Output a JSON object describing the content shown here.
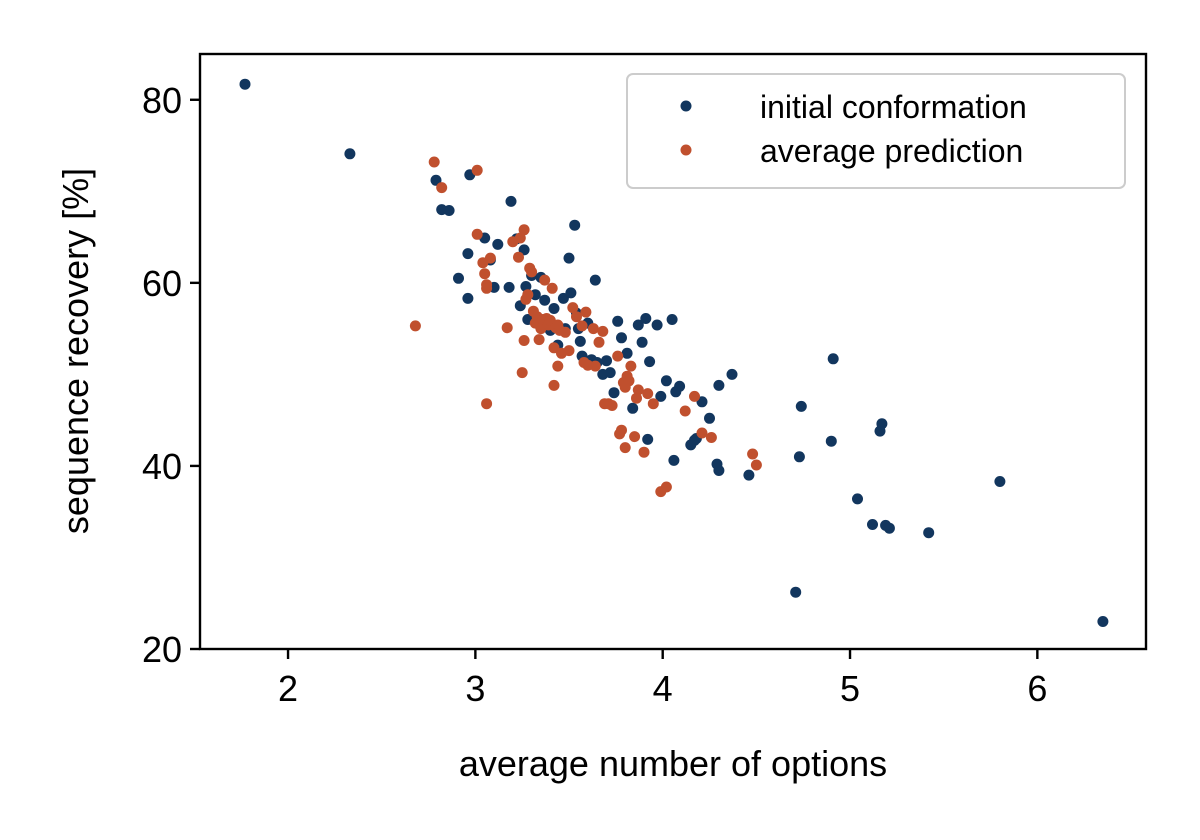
{
  "chart_data": {
    "type": "scatter",
    "xlabel": "average number of options",
    "ylabel": "sequence recovery [%]",
    "xlim": [
      1.53,
      6.58
    ],
    "ylim": [
      20,
      85
    ],
    "xticks": [
      2,
      3,
      4,
      5,
      6
    ],
    "yticks": [
      20,
      40,
      60,
      80
    ],
    "grid": false,
    "legend": "top-right",
    "series": [
      {
        "name": "initial conformation",
        "color": "#12365e",
        "points": [
          [
            1.77,
            81.7
          ],
          [
            2.33,
            74.1
          ],
          [
            2.79,
            71.2
          ],
          [
            2.82,
            68.0
          ],
          [
            2.86,
            67.9
          ],
          [
            2.97,
            71.8
          ],
          [
            2.96,
            63.2
          ],
          [
            3.05,
            64.9
          ],
          [
            2.91,
            60.5
          ],
          [
            2.96,
            58.3
          ],
          [
            3.08,
            62.5
          ],
          [
            3.1,
            59.5
          ],
          [
            3.12,
            64.2
          ],
          [
            3.18,
            59.5
          ],
          [
            3.19,
            68.9
          ],
          [
            3.22,
            64.8
          ],
          [
            3.24,
            57.5
          ],
          [
            3.26,
            63.6
          ],
          [
            3.27,
            59.6
          ],
          [
            3.28,
            56.0
          ],
          [
            3.3,
            60.8
          ],
          [
            3.32,
            58.7
          ],
          [
            3.34,
            55.9
          ],
          [
            3.35,
            60.6
          ],
          [
            3.37,
            58.1
          ],
          [
            3.4,
            54.8
          ],
          [
            3.42,
            57.2
          ],
          [
            3.44,
            53.2
          ],
          [
            3.47,
            58.3
          ],
          [
            3.48,
            55.0
          ],
          [
            3.5,
            62.7
          ],
          [
            3.51,
            58.9
          ],
          [
            3.53,
            66.3
          ],
          [
            3.54,
            56.7
          ],
          [
            3.55,
            55.0
          ],
          [
            3.56,
            53.6
          ],
          [
            3.57,
            52.0
          ],
          [
            3.6,
            55.6
          ],
          [
            3.62,
            51.6
          ],
          [
            3.64,
            60.3
          ],
          [
            3.65,
            51.3
          ],
          [
            3.68,
            50.0
          ],
          [
            3.7,
            51.5
          ],
          [
            3.72,
            50.2
          ],
          [
            3.74,
            48.0
          ],
          [
            3.76,
            55.8
          ],
          [
            3.78,
            54.0
          ],
          [
            3.81,
            52.3
          ],
          [
            3.84,
            46.3
          ],
          [
            3.87,
            55.4
          ],
          [
            3.89,
            53.5
          ],
          [
            3.91,
            56.1
          ],
          [
            3.93,
            51.4
          ],
          [
            3.97,
            55.4
          ],
          [
            3.99,
            47.6
          ],
          [
            4.02,
            49.3
          ],
          [
            4.05,
            56.0
          ],
          [
            4.07,
            48.1
          ],
          [
            4.09,
            48.7
          ],
          [
            4.06,
            40.6
          ],
          [
            4.15,
            42.3
          ],
          [
            4.17,
            42.8
          ],
          [
            4.21,
            47.0
          ],
          [
            4.25,
            45.2
          ],
          [
            4.29,
            40.2
          ],
          [
            4.3,
            39.5
          ],
          [
            4.3,
            48.8
          ],
          [
            4.37,
            50.0
          ],
          [
            4.46,
            39.0
          ],
          [
            4.71,
            26.2
          ],
          [
            4.73,
            41.0
          ],
          [
            4.74,
            46.5
          ],
          [
            4.9,
            42.7
          ],
          [
            4.91,
            51.7
          ],
          [
            5.04,
            36.4
          ],
          [
            5.12,
            33.6
          ],
          [
            5.16,
            43.8
          ],
          [
            5.17,
            44.6
          ],
          [
            5.19,
            33.5
          ],
          [
            5.21,
            33.2
          ],
          [
            5.42,
            32.7
          ],
          [
            5.8,
            38.3
          ],
          [
            6.35,
            23.0
          ],
          [
            3.92,
            42.9
          ],
          [
            4.18,
            43.0
          ]
        ]
      },
      {
        "name": "average prediction",
        "color": "#c0502e",
        "points": [
          [
            2.78,
            73.2
          ],
          [
            2.82,
            70.4
          ],
          [
            3.01,
            72.3
          ],
          [
            3.01,
            65.3
          ],
          [
            3.04,
            62.2
          ],
          [
            3.05,
            61.0
          ],
          [
            3.06,
            59.8
          ],
          [
            3.06,
            59.4
          ],
          [
            3.08,
            62.7
          ],
          [
            3.17,
            55.1
          ],
          [
            3.2,
            64.5
          ],
          [
            3.23,
            62.8
          ],
          [
            3.24,
            64.9
          ],
          [
            3.26,
            65.8
          ],
          [
            3.27,
            58.2
          ],
          [
            3.28,
            58.7
          ],
          [
            3.29,
            61.6
          ],
          [
            3.3,
            61.2
          ],
          [
            3.31,
            56.9
          ],
          [
            3.32,
            55.6
          ],
          [
            3.33,
            56.3
          ],
          [
            3.34,
            53.8
          ],
          [
            3.35,
            55.0
          ],
          [
            3.36,
            56.0
          ],
          [
            3.37,
            60.3
          ],
          [
            3.38,
            56.1
          ],
          [
            3.39,
            55.4
          ],
          [
            3.4,
            55.9
          ],
          [
            3.41,
            59.4
          ],
          [
            3.42,
            52.9
          ],
          [
            3.43,
            55.1
          ],
          [
            3.44,
            55.4
          ],
          [
            3.45,
            54.8
          ],
          [
            3.46,
            52.3
          ],
          [
            3.48,
            54.6
          ],
          [
            3.5,
            52.6
          ],
          [
            3.52,
            57.3
          ],
          [
            3.54,
            56.3
          ],
          [
            3.57,
            55.3
          ],
          [
            3.59,
            56.8
          ],
          [
            3.6,
            51.0
          ],
          [
            3.63,
            55.0
          ],
          [
            3.64,
            50.9
          ],
          [
            3.66,
            53.5
          ],
          [
            3.68,
            54.7
          ],
          [
            3.69,
            46.8
          ],
          [
            3.71,
            46.8
          ],
          [
            3.73,
            46.6
          ],
          [
            3.77,
            43.5
          ],
          [
            3.78,
            43.9
          ],
          [
            3.79,
            49.1
          ],
          [
            3.8,
            42.0
          ],
          [
            3.81,
            49.8
          ],
          [
            3.82,
            49.3
          ],
          [
            3.83,
            50.9
          ],
          [
            3.85,
            43.2
          ],
          [
            3.86,
            47.4
          ],
          [
            3.87,
            48.3
          ],
          [
            3.9,
            41.5
          ],
          [
            3.92,
            47.9
          ],
          [
            3.95,
            46.8
          ],
          [
            3.99,
            37.2
          ],
          [
            4.02,
            37.7
          ],
          [
            4.12,
            46.0
          ],
          [
            4.17,
            47.6
          ],
          [
            4.21,
            43.6
          ],
          [
            4.26,
            43.1
          ],
          [
            4.48,
            41.3
          ],
          [
            4.5,
            40.1
          ],
          [
            2.68,
            55.3
          ],
          [
            3.06,
            46.8
          ],
          [
            3.25,
            50.2
          ],
          [
            3.42,
            48.8
          ],
          [
            3.44,
            50.9
          ],
          [
            3.26,
            53.7
          ],
          [
            3.58,
            51.3
          ],
          [
            3.76,
            52.0
          ],
          [
            3.8,
            48.6
          ]
        ]
      }
    ]
  }
}
